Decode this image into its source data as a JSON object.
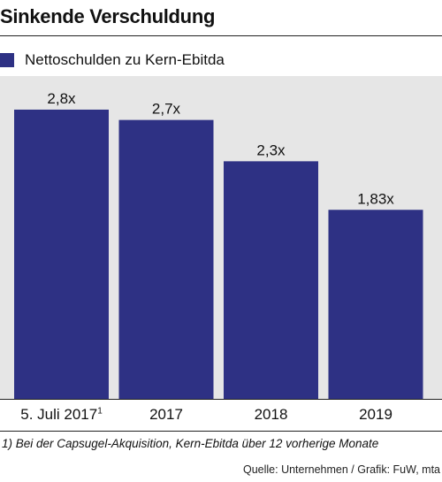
{
  "title": "Sinkende Verschuldung",
  "legend": {
    "label": "Nettoschulden zu Kern-Ebitda",
    "color": "#2e3184"
  },
  "chart_data": {
    "type": "bar",
    "title": "Sinkende Verschuldung",
    "categories": [
      "5. Juli 2017",
      "2017",
      "2018",
      "2019"
    ],
    "category_footnote_marks": [
      "1",
      "",
      "",
      ""
    ],
    "series": [
      {
        "name": "Nettoschulden zu Kern-Ebitda",
        "values": [
          2.8,
          2.7,
          2.3,
          1.83
        ]
      }
    ],
    "value_labels": [
      "2,8x",
      "2,7x",
      "2,3x",
      "1,83x"
    ],
    "ylim": [
      0,
      3.0
    ],
    "grid": false,
    "legend_position": "top-left",
    "bar_color": "#2e3184",
    "background_color": "#e6e6e6"
  },
  "footnote": "1) Bei der Capsugel-Akquisition, Kern-Ebitda über 12 vorherige Monate",
  "source": "Quelle: Unternehmen / Grafik: FuW, mta"
}
